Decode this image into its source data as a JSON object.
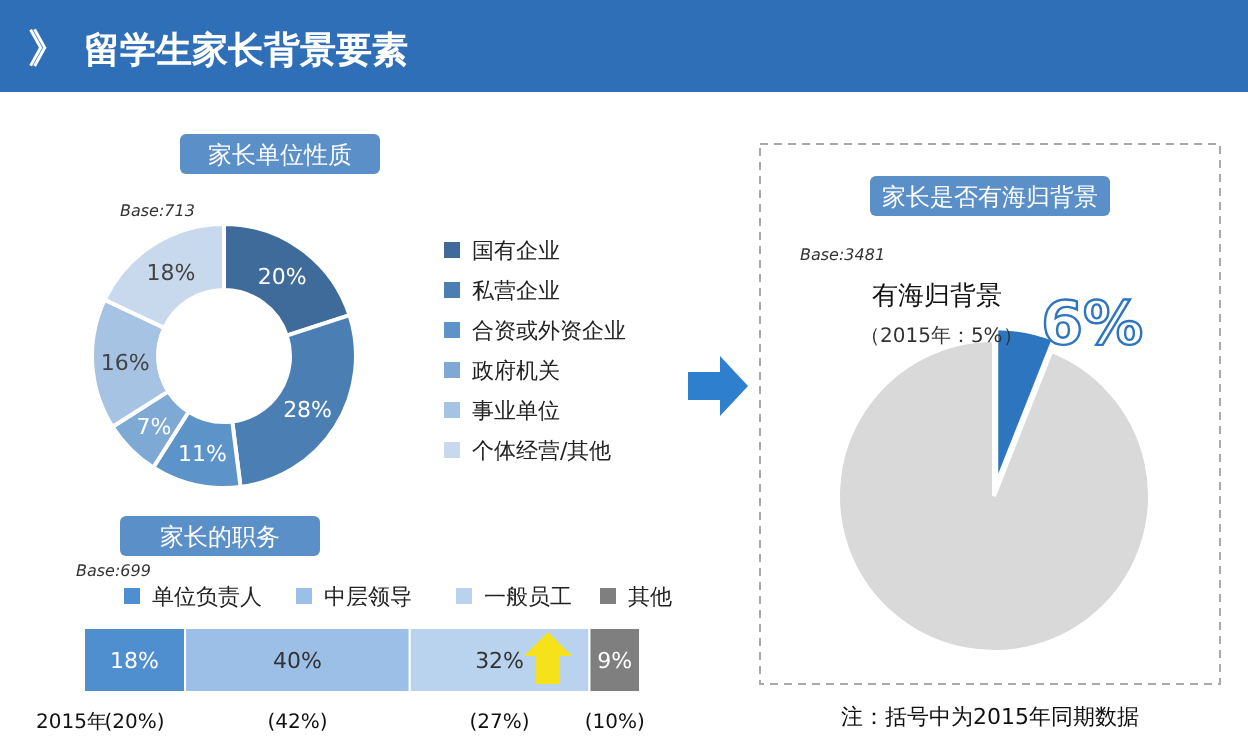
{
  "chart_data": [
    {
      "type": "donut",
      "title": "家长单位性质",
      "annotations": [
        "》",
        "留学生家长背景要素",
        "Base:713"
      ],
      "legend": "right",
      "categories": [
        "国有企业",
        "私营企业",
        "合资或外资企业",
        "政府机关",
        "事业单位",
        "个体经营/其他"
      ],
      "values": [
        20,
        28,
        11,
        7,
        16,
        18
      ],
      "colors": [
        "#3f6b9a",
        "#4b7fb4",
        "#5c93c8",
        "#7ea9d5",
        "#a6c3e3",
        "#c8d9ed"
      ],
      "value_labels": [
        "20%",
        "28%",
        "11%",
        "7%",
        "16%",
        "18%"
      ]
    },
    {
      "type": "bar",
      "title": "家长的职务",
      "orientation": "horizontal",
      "stacked": true,
      "legend": "top",
      "categories": [
        null
      ],
      "annotations": [
        "Base:699",
        "2015年",
        "(20%)",
        "(42%)",
        "(27%)",
        "(10%)"
      ],
      "series": [
        {
          "name": "单位负责人",
          "color": "#4f8fd0",
          "values": [
            18
          ],
          "value_labels": [
            "18%"
          ]
        },
        {
          "name": "中层领导",
          "color": "#9bbfe6",
          "values": [
            40
          ],
          "value_labels": [
            "40%"
          ]
        },
        {
          "name": "一般员工",
          "color": "#b9d3ee",
          "values": [
            32
          ],
          "value_labels": [
            "32%"
          ]
        },
        {
          "name": "其他",
          "color": "#7f7f7f",
          "values": [
            9
          ],
          "value_labels": [
            "9%"
          ]
        }
      ]
    },
    {
      "type": "pie",
      "title": "家长是否有海归背景",
      "categories": [
        "有海归背景",
        null
      ],
      "values": [
        6,
        94
      ],
      "colors": [
        "#2e75c0",
        "#d9d9d9"
      ],
      "value_labels": [
        "6%",
        null
      ],
      "annotations": [
        "Base:3481",
        "（2015年：5%）",
        "注：括号中为2015年同期数据"
      ]
    }
  ]
}
